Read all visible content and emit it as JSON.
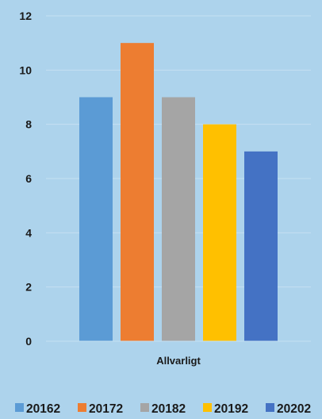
{
  "chart_data": {
    "type": "bar",
    "categories": [
      "Allvarligt"
    ],
    "series": [
      {
        "name": "20162",
        "values": [
          9
        ],
        "color": "#5b9bd5"
      },
      {
        "name": "20172",
        "values": [
          11
        ],
        "color": "#ed7d31"
      },
      {
        "name": "20182",
        "values": [
          9
        ],
        "color": "#a5a5a5"
      },
      {
        "name": "20192",
        "values": [
          8
        ],
        "color": "#ffc000"
      },
      {
        "name": "20202",
        "values": [
          7
        ],
        "color": "#4472c4"
      }
    ],
    "ylim": [
      0,
      12
    ],
    "yticks": [
      0,
      2,
      4,
      6,
      8,
      10,
      12
    ],
    "grid": true,
    "legend_position": "bottom",
    "background": "#add3ec",
    "gridline_color": "#c5e0f2"
  }
}
